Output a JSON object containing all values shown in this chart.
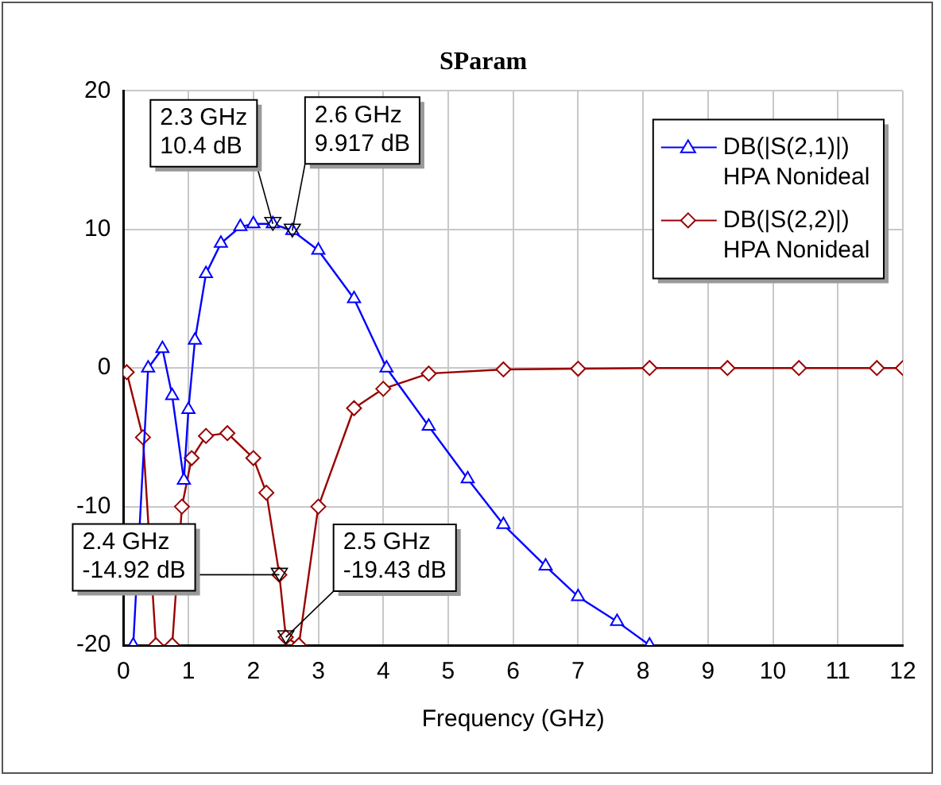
{
  "chart_data": {
    "type": "line",
    "title": "SParam",
    "xlabel": "Frequency (GHz)",
    "xlim": [
      0,
      12
    ],
    "xticks": [
      0,
      1,
      2,
      3,
      4,
      5,
      6,
      7,
      8,
      9,
      10,
      11,
      12
    ],
    "ylim": [
      -20,
      20
    ],
    "yticks": [
      -20,
      -10,
      0,
      10,
      20
    ],
    "grid": true,
    "legend": "top right",
    "series": [
      {
        "name": "DB(|S(2,1)|)\nHPA Nonideal",
        "color": "#0000ff",
        "marker": "triangle",
        "x": [
          0.15,
          0.38,
          0.6,
          0.75,
          0.93,
          1.0,
          1.1,
          1.27,
          1.5,
          1.8,
          2.0,
          2.3,
          2.6,
          3.0,
          3.55,
          4.05,
          4.7,
          5.3,
          5.85,
          6.5,
          7.0,
          7.6,
          8.1
        ],
        "values": [
          -20,
          0,
          1.4,
          -2,
          -8.1,
          -3,
          2,
          6.8,
          9,
          10.2,
          10.4,
          10.4,
          9.917,
          8.5,
          5,
          0,
          -4.2,
          -8,
          -11.3,
          -14.3,
          -16.5,
          -18.3,
          -20
        ]
      },
      {
        "name": "DB(|S(2,2)|)\nHPA Nonideal",
        "color": "#990000",
        "marker": "diamond",
        "x": [
          0.05,
          0.3,
          0.5,
          0.62,
          0.75,
          0.9,
          1.05,
          1.27,
          1.6,
          2.0,
          2.2,
          2.4,
          2.5,
          2.7,
          3.0,
          3.55,
          4.0,
          4.7,
          5.85,
          7.0,
          8.1,
          9.3,
          10.4,
          11.6,
          12
        ],
        "values": [
          -0.3,
          -5,
          -20,
          null,
          -20,
          -10,
          -6.5,
          -4.9,
          -4.7,
          -6.5,
          -9,
          -14.92,
          -19.43,
          -20,
          -10,
          -2.9,
          -1.5,
          -0.4,
          -0.1,
          -0.05,
          0,
          0,
          0,
          0,
          0
        ]
      }
    ],
    "annotations": [
      {
        "text": "2.3 GHz\n10.4 dB",
        "x": 2.3,
        "y": 10.4
      },
      {
        "text": "2.6 GHz\n9.917 dB",
        "x": 2.6,
        "y": 9.917
      },
      {
        "text": "2.4 GHz\n-14.92 dB",
        "x": 2.4,
        "y": -14.92
      },
      {
        "text": "2.5 GHz\n-19.43 dB",
        "x": 2.5,
        "y": -19.43
      }
    ]
  }
}
